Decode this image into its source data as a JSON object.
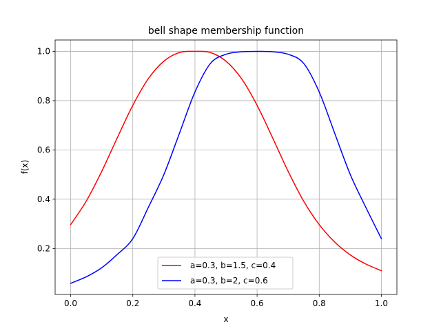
{
  "chart_data": {
    "type": "line",
    "title": "bell shape membership function",
    "xlabel": "x",
    "ylabel": "f(x)",
    "xlim": [
      -0.05,
      1.05
    ],
    "ylim": [
      0.0136,
      1.046
    ],
    "xticks": [
      "0.0",
      "0.2",
      "0.4",
      "0.6",
      "0.8",
      "1.0"
    ],
    "xtick_values": [
      0.0,
      0.2,
      0.4,
      0.6,
      0.8,
      1.0
    ],
    "yticks": [
      "0.2",
      "0.4",
      "0.6",
      "0.8",
      "1.0"
    ],
    "ytick_values": [
      0.2,
      0.4,
      0.6,
      0.8,
      1.0
    ],
    "grid": true,
    "legend_position": "bottom-center",
    "x": [
      0.0,
      0.05,
      0.1,
      0.15,
      0.2,
      0.25,
      0.3,
      0.35,
      0.4,
      0.45,
      0.5,
      0.55,
      0.6,
      0.65,
      0.7,
      0.75,
      0.8,
      0.85,
      0.9,
      0.95,
      1.0
    ],
    "series": [
      {
        "name": "a=0.3, b=1.5, c=0.4",
        "color": "#ff0000",
        "values": [
          0.297,
          0.392,
          0.513,
          0.649,
          0.781,
          0.889,
          0.96,
          0.995,
          1.0,
          0.995,
          0.96,
          0.889,
          0.781,
          0.649,
          0.513,
          0.392,
          0.297,
          0.226,
          0.174,
          0.137,
          0.11
        ]
      },
      {
        "name": "a=0.3, b=2, c=0.6",
        "color": "#0000ff",
        "values": [
          0.059,
          0.085,
          0.122,
          0.176,
          0.24,
          0.367,
          0.5,
          0.667,
          0.835,
          0.951,
          0.988,
          0.998,
          1.0,
          0.998,
          0.988,
          0.951,
          0.835,
          0.667,
          0.5,
          0.367,
          0.24
        ]
      }
    ]
  }
}
